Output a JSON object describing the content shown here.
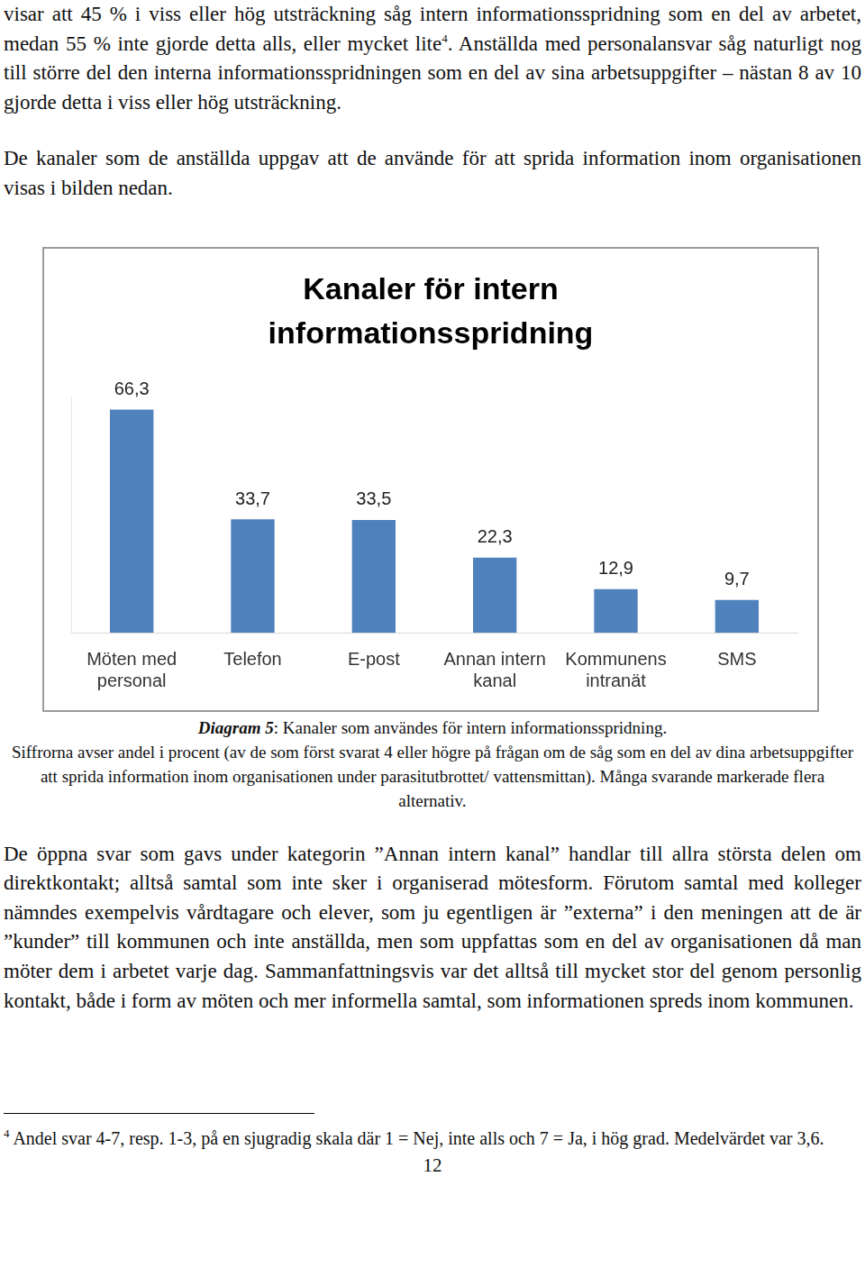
{
  "paragraph_1": {
    "before": "visar att 45 % i viss eller hög utsträckning såg intern informationsspridning som en del av arbetet, medan 55 % inte gjorde detta alls, eller mycket lite",
    "footnote_ref": "4",
    "after": ". Anställda med personalansvar såg naturligt nog till större del den interna informationsspridningen som en del av sina arbetsuppgifter – nästan 8 av 10 gjorde detta i viss eller hög utsträckning."
  },
  "paragraph_2": "De kanaler som de anställda uppgav att de använde för att sprida information inom organisationen visas i bilden nedan.",
  "chart_data": {
    "type": "bar",
    "title": [
      "Kanaler för intern",
      "informationsspridning"
    ],
    "categories": [
      [
        "Möten med",
        "personal"
      ],
      [
        "Telefon"
      ],
      [
        "E-post"
      ],
      [
        "Annan intern",
        "kanal"
      ],
      [
        "Kommunens",
        "intranät"
      ],
      [
        "SMS"
      ]
    ],
    "values": [
      66.3,
      33.7,
      33.5,
      22.3,
      12.9,
      9.7
    ],
    "value_labels": [
      "66,3",
      "33,7",
      "33,5",
      "22,3",
      "12,9",
      "9,7"
    ],
    "color": "#4f81bd",
    "ylim": [
      0,
      70
    ],
    "data_labels": true,
    "tick_labels": "x",
    "grid": false
  },
  "caption": {
    "label": "Diagram 5",
    "title": ": Kanaler som användes för intern informationsspridning.",
    "text": "Siffrorna avser andel i procent (av de som först svarat 4 eller högre på frågan om de såg som en del av dina arbetsuppgifter att sprida information inom organisationen under parasitutbrottet/ vattensmittan). Många svarande markerade flera alternativ."
  },
  "paragraph_3": "De öppna svar som gavs under kategorin ”Annan intern kanal” handlar till allra största delen om direktkontakt; alltså samtal som inte sker i organiserad mötesform. Förutom samtal med kolleger nämndes exempelvis vårdtagare och elever, som ju egentligen är ”externa” i den meningen att de är ”kunder” till kommunen och inte anställda, men som uppfattas som en del av organisationen då man möter dem i arbetet varje dag. Sammanfattningsvis var det alltså till mycket stor del genom personlig kontakt, både i form av möten och mer informella samtal, som informationen spreds inom kommunen.",
  "footnote": {
    "number": "4",
    "text": "Andel svar 4-7, resp. 1-3, på en sjugradig skala där 1 = Nej, inte alls och 7 = Ja, i hög grad. Medelvärdet var 3,6."
  },
  "page_number": "12"
}
